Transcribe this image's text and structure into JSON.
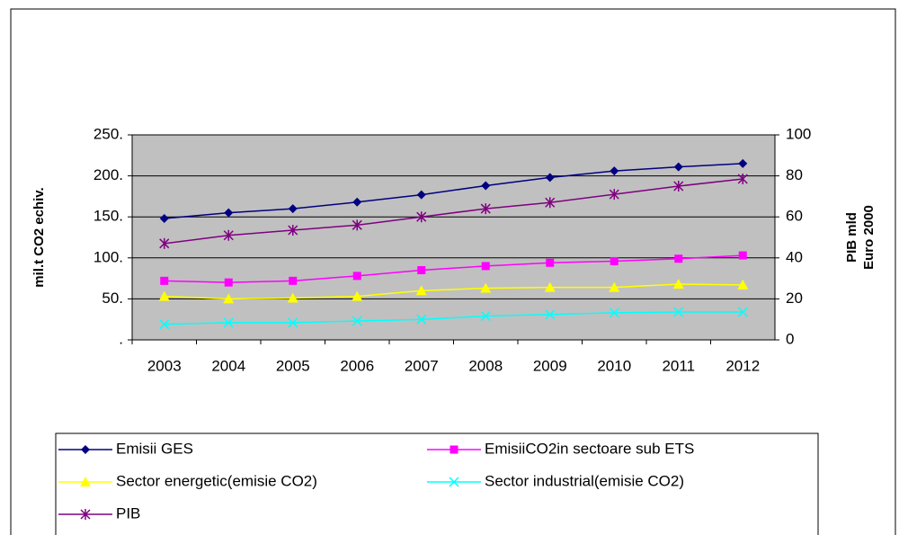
{
  "chart_data": {
    "type": "line",
    "categories": [
      "2003",
      "2004",
      "2005",
      "2006",
      "2007",
      "2008",
      "2009",
      "2010",
      "2011",
      "2012"
    ],
    "ylabel": "mil.t CO2 echiv.",
    "y2label": [
      "PIB mld",
      "Euro 2000"
    ],
    "ylim": [
      0,
      250
    ],
    "yticks": [
      {
        "value": 0,
        "label": "."
      },
      {
        "value": 50,
        "label": "50."
      },
      {
        "value": 100,
        "label": "100."
      },
      {
        "value": 150,
        "label": "150."
      },
      {
        "value": 200,
        "label": "200."
      },
      {
        "value": 250,
        "label": "250."
      }
    ],
    "y2lim": [
      0,
      100
    ],
    "y2ticks": [
      0,
      20,
      40,
      60,
      80,
      100
    ],
    "grid": true,
    "legend": "bottom",
    "series": [
      {
        "name": "Emisii GES",
        "color": "#000080",
        "marker": "diamond",
        "values": [
          148,
          155,
          160,
          168,
          177,
          188,
          198,
          206,
          211,
          215
        ]
      },
      {
        "name": "EmisiiCO2in sectoare sub  ETS",
        "color": "#ff00ff",
        "marker": "square",
        "values": [
          72,
          70,
          72,
          78,
          85,
          90,
          94,
          96,
          99,
          103
        ]
      },
      {
        "name": "Sector energetic(emisie CO2)",
        "color": "#ffff00",
        "marker": "triangle",
        "values": [
          53,
          50,
          51,
          53,
          60,
          63,
          64,
          64,
          68,
          67
        ]
      },
      {
        "name": "Sector industrial(emisie CO2)",
        "color": "#00ffff",
        "marker": "x",
        "values": [
          19,
          21,
          21,
          23,
          25,
          29,
          31,
          33,
          34,
          34
        ]
      },
      {
        "name": "PIB",
        "color": "#800080",
        "marker": "star",
        "axis": "y2",
        "values": [
          47,
          51,
          53.5,
          56,
          60,
          64,
          67,
          71,
          75,
          78.5
        ]
      }
    ]
  }
}
